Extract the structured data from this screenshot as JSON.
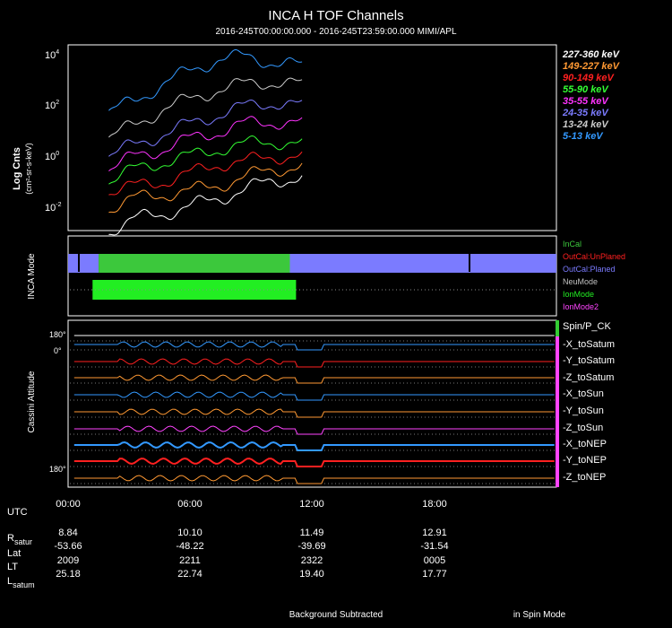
{
  "header": {
    "title": "INCA H TOF Channels",
    "subtitle": "2016-245T00:00:00.000 - 2016-245T23:59:00.000 MIMI/APL"
  },
  "colors": {
    "background": "#000000",
    "frame": "#ffffff",
    "incal": "#3cc83c",
    "outcal_unplaned": "#ff2020",
    "outcal_planed": "#7b7bff",
    "neumode": "#c0c0c0",
    "ionmode": "#22ee22",
    "ionmode2": "#ff44ff"
  },
  "chart_data": [
    {
      "type": "line",
      "ylabel": "Log Cnts",
      "ylabel_units": "(cm²-sr-s-keV)",
      "y_scale": "log",
      "ylim": [
        0.001,
        30000
      ],
      "y_ticks": [
        {
          "label": "10",
          "exp": "-2",
          "value": 0.01
        },
        {
          "label": "10",
          "exp": "0",
          "value": 1
        },
        {
          "label": "10",
          "exp": "2",
          "value": 100
        },
        {
          "label": "10",
          "exp": "4",
          "value": 10000
        }
      ],
      "xlim": [
        0,
        24
      ],
      "series": [
        {
          "name": "227-360 keV",
          "color": "#ffffff",
          "shape": "high",
          "x_end": 11.5,
          "values": [
            0.001,
            0.003,
            0.005,
            0.01,
            0.02,
            0.05,
            0.1,
            0.15
          ]
        },
        {
          "name": "149-227 keV",
          "color": "#ff9933",
          "shape": "high",
          "x_end": 11.5,
          "values": [
            0.008,
            0.02,
            0.03,
            0.04,
            0.07,
            0.15,
            0.3,
            0.4
          ]
        },
        {
          "name": "90-149 keV",
          "color": "#ff2020",
          "shape": "high",
          "x_end": 11.5,
          "values": [
            0.04,
            0.06,
            0.1,
            0.2,
            0.5,
            0.6,
            1,
            1
          ]
        },
        {
          "name": "55-90 keV",
          "color": "#33ff33",
          "shape": "high",
          "x_end": 11.5,
          "values": [
            0.1,
            0.3,
            0.6,
            1,
            2,
            3,
            4,
            3
          ]
        },
        {
          "name": "35-55 keV",
          "color": "#ff33ff",
          "shape": "high",
          "x_end": 11.5,
          "values": [
            0.3,
            1,
            2,
            5,
            10,
            20,
            25,
            20
          ]
        },
        {
          "name": "24-35 keV",
          "color": "#7b7bff",
          "shape": "high",
          "x_end": 11.5,
          "values": [
            1,
            3,
            8,
            20,
            50,
            100,
            150,
            100
          ]
        },
        {
          "name": "13-24 keV",
          "color": "#cccccc",
          "shape": "high",
          "x_end": 11.5,
          "values": [
            5,
            20,
            80,
            200,
            500,
            800,
            1000,
            700
          ]
        },
        {
          "name": "5-13 keV",
          "color": "#3399ff",
          "shape": "high",
          "x_end": 11.5,
          "values": [
            50,
            200,
            800,
            3000,
            8000,
            10000,
            6000,
            4000
          ]
        }
      ]
    },
    {
      "type": "timeline",
      "ylabel": "INCA Mode",
      "legend": [
        {
          "name": "InCal",
          "color": "#3cc83c"
        },
        {
          "name": "OutCal:UnPlaned",
          "color": "#ff2020"
        },
        {
          "name": "OutCal:Planed",
          "color": "#7b7bff"
        },
        {
          "name": "NeuMode",
          "color": "#c0c0c0"
        },
        {
          "name": "IonMode",
          "color": "#22ee22"
        },
        {
          "name": "IonMode2",
          "color": "#ff44ff"
        }
      ],
      "rows": [
        {
          "segments": [
            {
              "start": 0.0,
              "end": 1.5,
              "color": "#7b7bff"
            },
            {
              "start": 1.5,
              "end": 10.9,
              "color": "#3cc83c"
            },
            {
              "start": 10.9,
              "end": 24.0,
              "color": "#7b7bff"
            }
          ]
        },
        {
          "segments": [
            {
              "start": 1.2,
              "end": 11.2,
              "color": "#22ee22"
            }
          ]
        }
      ]
    },
    {
      "type": "line",
      "ylabel": "Cassini Attitude",
      "y_ticks": [
        {
          "label": "180°"
        },
        {
          "label": "0°"
        },
        {
          "label": "180°"
        }
      ],
      "legend": [
        {
          "name": "Spin/P_CK",
          "color": "#ffffff"
        },
        {
          "name": "-X_toSatum",
          "color": "#3399ff"
        },
        {
          "name": "-Y_toSatum",
          "color": "#ff2020"
        },
        {
          "name": "-Z_toSatum",
          "color": "#ff9933"
        },
        {
          "name": "-X_toSun",
          "color": "#3399ff"
        },
        {
          "name": "-Y_toSun",
          "color": "#ff9933"
        },
        {
          "name": "-Z_toSun",
          "color": "#ff44ff"
        },
        {
          "name": "-X_toNEP",
          "color": "#3399ff"
        },
        {
          "name": "-Y_toNEP",
          "color": "#ff2020"
        },
        {
          "name": "-Z_toNEP",
          "color": "#ff9933"
        }
      ]
    }
  ],
  "ephemeris": {
    "time_label": "UTC",
    "times": [
      "00:00",
      "06:00",
      "12:00",
      "18:00"
    ],
    "rows": [
      {
        "label": "R",
        "sub": "satur",
        "values": [
          "8.84",
          "10.10",
          "11.49",
          "12.91"
        ]
      },
      {
        "label": "Lat",
        "sub": "",
        "values": [
          "-53.66",
          "-48.22",
          "-39.69",
          "-31.54"
        ]
      },
      {
        "label": "LT",
        "sub": "",
        "values": [
          "2009",
          "2211",
          "2322",
          "0005"
        ]
      },
      {
        "label": "L",
        "sub": "satum",
        "values": [
          "25.18",
          "22.74",
          "19.40",
          "17.77"
        ]
      }
    ]
  },
  "footer": {
    "left": "Background Subtracted",
    "right": "in Spin Mode"
  }
}
